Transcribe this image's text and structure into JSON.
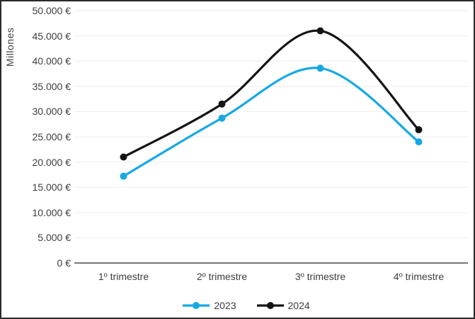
{
  "chart_data": {
    "type": "line",
    "smooth": true,
    "marker": "circle",
    "ylabel": "Millones",
    "categories": [
      "1º trimestre",
      "2º trimestre",
      "3º trimestre",
      "4º trimestre"
    ],
    "series": [
      {
        "name": "2023",
        "color": "#17A8E5",
        "values": [
          17200,
          28700,
          38600,
          24000
        ]
      },
      {
        "name": "2024",
        "color": "#141414",
        "values": [
          21000,
          31500,
          46000,
          26400
        ]
      }
    ],
    "ylim": [
      0,
      50000
    ],
    "ytick_step": 5000,
    "ytick_labels": [
      "50.000 €",
      "45.000 €",
      "40.000 €",
      "35.000 €",
      "30.000 €",
      "25.000 €",
      "20.000 €",
      "15.000 €",
      "10.000 €",
      "5.000 €",
      "0 €"
    ],
    "grid": true,
    "legend_position": "bottom"
  },
  "colors": {
    "grid": "#eeeeee",
    "axis": "#4a4a4a",
    "text": "#3d3d3d",
    "background": "#ffffff",
    "frame_border": "#2b2b2b"
  }
}
